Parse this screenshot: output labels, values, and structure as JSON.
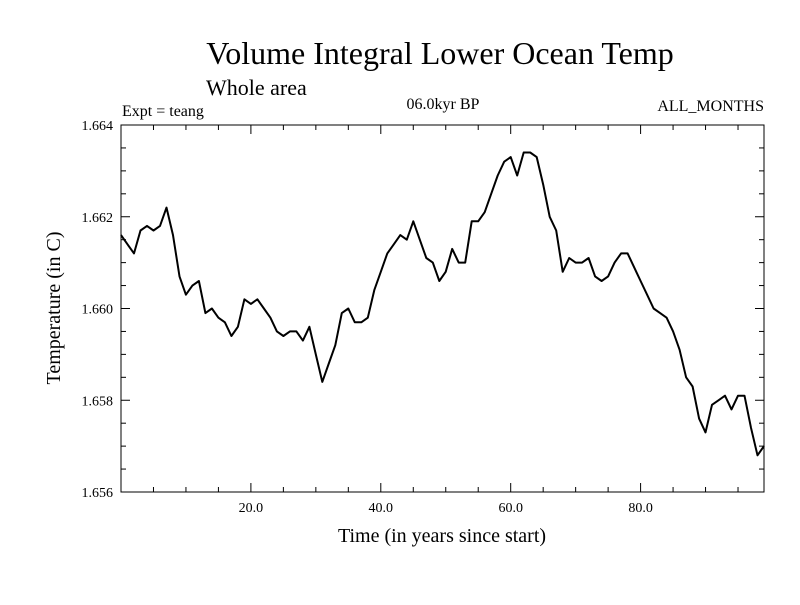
{
  "chart_data": {
    "type": "line",
    "title": "Volume Integral Lower Ocean Temp",
    "subtitle": "Whole area",
    "experiment_label": "Expt = teang",
    "period_label": "06.0kyr BP",
    "months_label": "ALL_MONTHS",
    "xlabel": "Time (in years since start)",
    "ylabel": "Temperature (in C)",
    "xlim": [
      0,
      99
    ],
    "ylim": [
      1.656,
      1.664
    ],
    "x_tick_labels": [
      "20.0",
      "40.0",
      "60.0",
      "80.0"
    ],
    "y_tick_labels": [
      "1.656",
      "1.658",
      "1.660",
      "1.662",
      "1.664"
    ],
    "series": [
      {
        "name": "Temperature",
        "x": [
          0,
          1,
          2,
          3,
          4,
          5,
          6,
          7,
          8,
          9,
          10,
          11,
          12,
          13,
          14,
          15,
          16,
          17,
          18,
          19,
          20,
          21,
          22,
          23,
          24,
          25,
          26,
          27,
          28,
          29,
          30,
          31,
          32,
          33,
          34,
          35,
          36,
          37,
          38,
          39,
          40,
          41,
          42,
          43,
          44,
          45,
          46,
          47,
          48,
          49,
          50,
          51,
          52,
          53,
          54,
          55,
          56,
          57,
          58,
          59,
          60,
          61,
          62,
          63,
          64,
          65,
          66,
          67,
          68,
          69,
          70,
          71,
          72,
          73,
          74,
          75,
          76,
          77,
          78,
          79,
          80,
          81,
          82,
          83,
          84,
          85,
          86,
          87,
          88,
          89,
          90,
          91,
          92,
          93,
          94,
          95,
          96,
          97,
          98,
          99
        ],
        "values": [
          1.6616,
          1.6614,
          1.6612,
          1.6617,
          1.6618,
          1.6617,
          1.6618,
          1.6622,
          1.6616,
          1.6607,
          1.6603,
          1.6605,
          1.6606,
          1.6599,
          1.66,
          1.6598,
          1.6597,
          1.6594,
          1.6596,
          1.6602,
          1.6601,
          1.6602,
          1.66,
          1.6598,
          1.6595,
          1.6594,
          1.6595,
          1.6595,
          1.6593,
          1.6596,
          1.659,
          1.6584,
          1.6588,
          1.6592,
          1.6599,
          1.66,
          1.6597,
          1.6597,
          1.6598,
          1.6604,
          1.6608,
          1.6612,
          1.6614,
          1.6616,
          1.6615,
          1.6619,
          1.6615,
          1.6611,
          1.661,
          1.6606,
          1.6608,
          1.6613,
          1.661,
          1.661,
          1.6619,
          1.6619,
          1.6621,
          1.6625,
          1.6629,
          1.6632,
          1.6633,
          1.6629,
          1.6634,
          1.6634,
          1.6633,
          1.6627,
          1.662,
          1.6617,
          1.6608,
          1.6611,
          1.661,
          1.661,
          1.6611,
          1.6607,
          1.6606,
          1.6607,
          1.661,
          1.6612,
          1.6612,
          1.6609,
          1.6606,
          1.6603,
          1.66,
          1.6599,
          1.6598,
          1.6595,
          1.6591,
          1.6585,
          1.6583,
          1.6576,
          1.6573,
          1.6579,
          1.658,
          1.6581,
          1.6578,
          1.6581,
          1.6581,
          1.6574,
          1.6568,
          1.657
        ]
      }
    ],
    "grid": false,
    "line_color": "#000000"
  }
}
